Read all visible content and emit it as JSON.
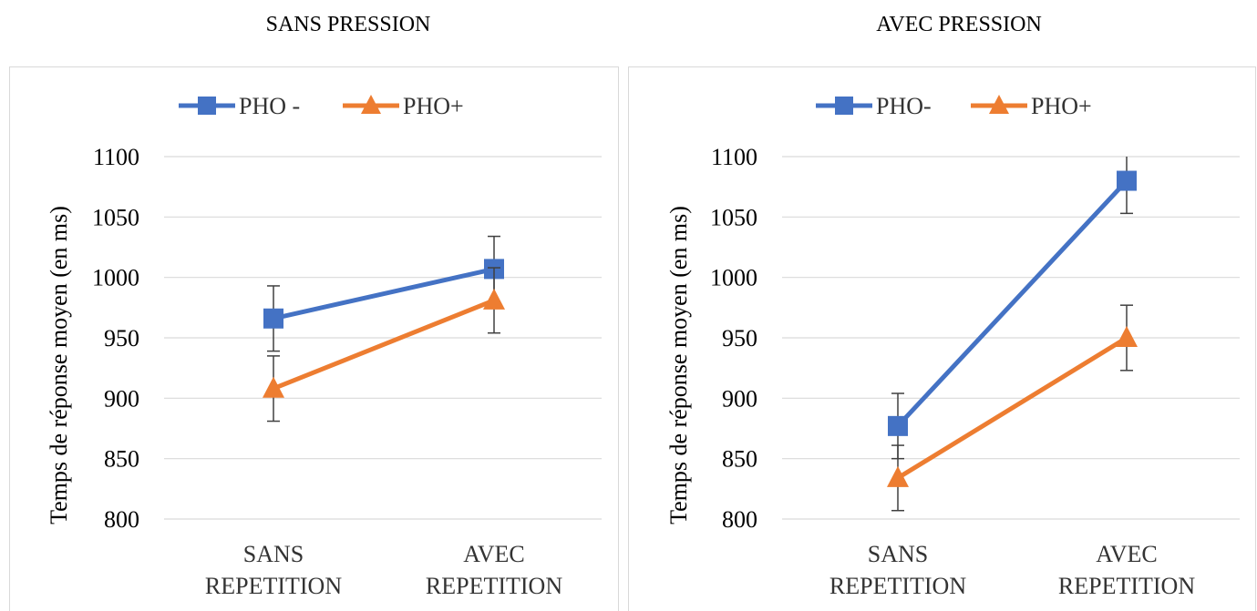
{
  "chart_data": [
    {
      "type": "line",
      "title": "SANS PRESSION",
      "ylabel": "Temps de réponse moyen (en ms)",
      "ylim": [
        800,
        1100
      ],
      "yticks": [
        800,
        850,
        900,
        950,
        1000,
        1050,
        1100
      ],
      "grid": true,
      "legend_position": "top-left",
      "categories": [
        [
          "SANS",
          "REPETITION"
        ],
        [
          "AVEC",
          "REPETITION"
        ]
      ],
      "series": [
        {
          "name": "PHO -",
          "color": "#4472C4",
          "marker": "square",
          "values": [
            966,
            1007
          ],
          "error": [
            27,
            27
          ]
        },
        {
          "name": "PHO+",
          "color": "#ED7D31",
          "marker": "triangle",
          "values": [
            908,
            981
          ],
          "error": [
            27,
            27
          ]
        }
      ]
    },
    {
      "type": "line",
      "title": "AVEC PRESSION",
      "ylabel": "Temps de réponse moyen (en ms)",
      "ylim": [
        800,
        1100
      ],
      "yticks": [
        800,
        850,
        900,
        950,
        1000,
        1050,
        1100
      ],
      "grid": true,
      "legend_position": "top-left",
      "categories": [
        [
          "SANS",
          "REPETITION"
        ],
        [
          "AVEC",
          "REPETITION"
        ]
      ],
      "series": [
        {
          "name": "PHO-",
          "color": "#4472C4",
          "marker": "square",
          "values": [
            877,
            1080
          ],
          "error": [
            27,
            27
          ]
        },
        {
          "name": "PHO+",
          "color": "#ED7D31",
          "marker": "triangle",
          "values": [
            834,
            950
          ],
          "error": [
            27,
            27
          ]
        }
      ]
    }
  ]
}
